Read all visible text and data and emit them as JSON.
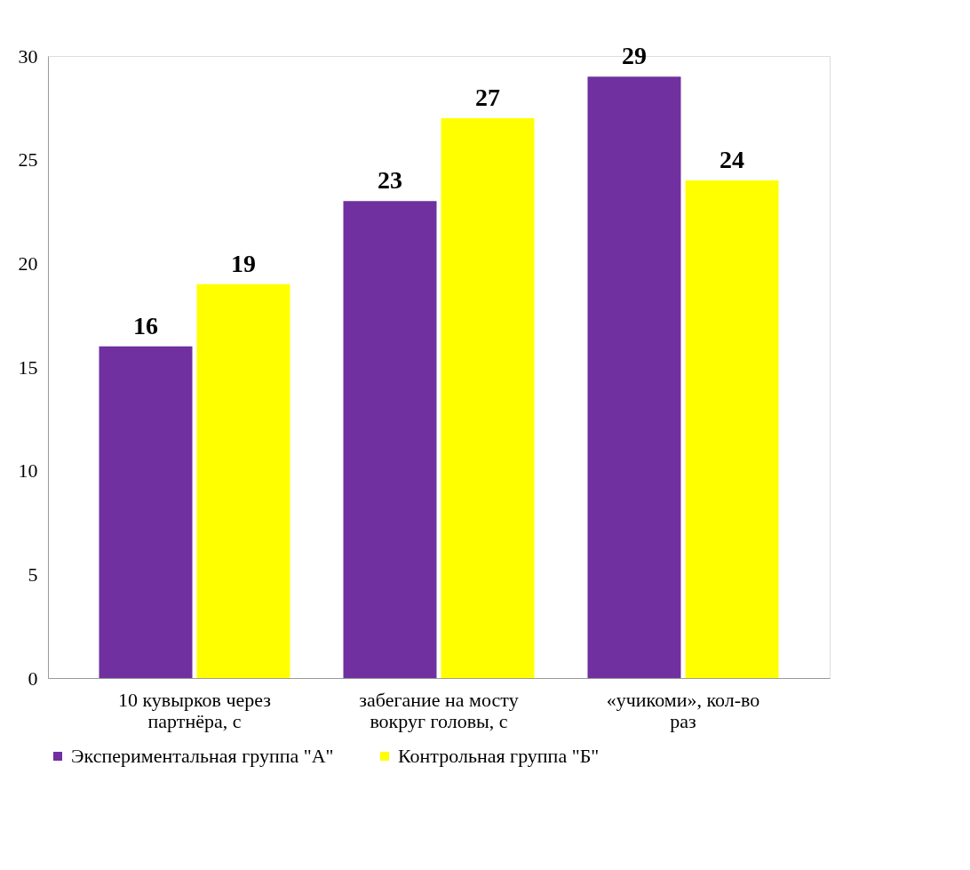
{
  "chart_data": {
    "type": "bar",
    "categories": [
      "10 кувырков через партнёра, с",
      "забегание на мосту вокруг головы, с",
      "«учикоми», кол-во раз"
    ],
    "series": [
      {
        "name": "Экспериментальная группа  \"А\"",
        "color": "#7030a0",
        "values": [
          16,
          23,
          29
        ]
      },
      {
        "name": "Контрольная группа \"Б\"",
        "color": "#ffff00",
        "values": [
          19,
          27,
          24
        ]
      }
    ],
    "ylim": [
      0,
      30
    ],
    "yticks": [
      0,
      5,
      10,
      15,
      20,
      25,
      30
    ],
    "grid": false,
    "legend": "bottom",
    "data_labels": true
  }
}
